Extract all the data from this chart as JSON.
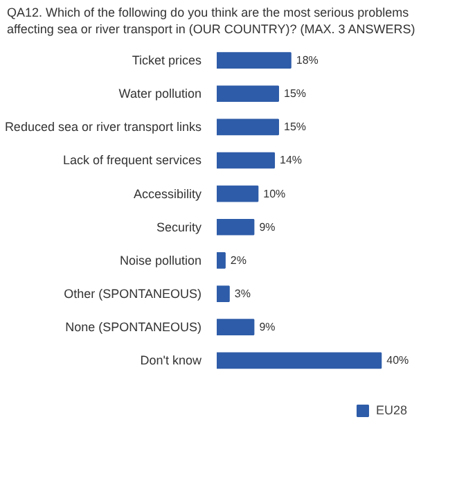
{
  "chart_data": {
    "type": "bar",
    "orientation": "horizontal",
    "title": "QA12. Which of the following do you think are the most serious problems affecting sea or river transport in (OUR COUNTRY)? (MAX. 3 ANSWERS)",
    "categories": [
      "Ticket prices",
      "Water pollution",
      "Reduced sea or river transport links",
      "Lack of frequent services",
      "Accessibility",
      "Security",
      "Noise pollution",
      "Other (SPONTANEOUS)",
      "None (SPONTANEOUS)",
      "Don't know"
    ],
    "series": [
      {
        "name": "EU28",
        "color": "#2e5ca8",
        "values": [
          18,
          15,
          15,
          14,
          10,
          9,
          2,
          3,
          9,
          40
        ],
        "value_labels": [
          "18%",
          "15%",
          "15%",
          "14%",
          "10%",
          "9%",
          "2%",
          "3%",
          "9%",
          "40%"
        ]
      }
    ],
    "legend": "bottom right",
    "grid": false
  }
}
